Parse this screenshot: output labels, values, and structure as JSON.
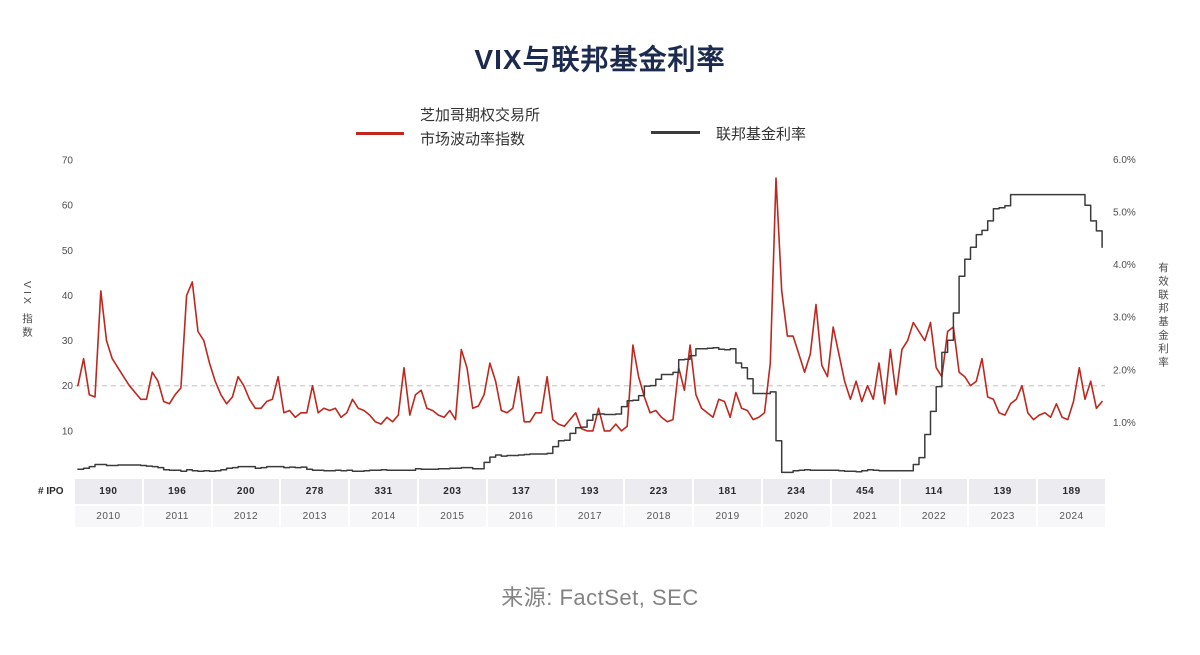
{
  "title": {
    "text": "VIX与联邦基金利率"
  },
  "legend": {
    "vix": {
      "line1": "芝加哥期权交易所",
      "line2": "市场波动率指数",
      "color": "#c0271e"
    },
    "ffr": {
      "label": "联邦基金利率",
      "color": "#3b3b3b"
    }
  },
  "axes": {
    "left": {
      "title": "VIX 指数",
      "tick_labels": [
        "70",
        "60",
        "50",
        "40",
        "30",
        "20",
        "10"
      ],
      "tick_values": [
        70,
        60,
        50,
        40,
        30,
        20,
        10
      ]
    },
    "right": {
      "title": "有效联邦基金利率",
      "tick_labels": [
        "6.0%",
        "5.0%",
        "4.0%",
        "3.0%",
        "2.0%",
        "1.0%"
      ],
      "tick_values": [
        6,
        5,
        4,
        3,
        2,
        1
      ]
    }
  },
  "ipo": {
    "label": "# IPO",
    "years": [
      "2010",
      "2011",
      "2012",
      "2013",
      "2014",
      "2015",
      "2016",
      "2017",
      "2018",
      "2019",
      "2020",
      "2021",
      "2022",
      "2023",
      "2024"
    ],
    "counts": [
      "190",
      "196",
      "200",
      "278",
      "331",
      "203",
      "137",
      "193",
      "223",
      "181",
      "234",
      "454",
      "114",
      "139",
      "189"
    ]
  },
  "source": {
    "text": "来源: FactSet, SEC"
  },
  "chart_data": {
    "type": "line",
    "title": "VIX与联邦基金利率",
    "x_years": [
      2010,
      2011,
      2012,
      2013,
      2014,
      2015,
      2016,
      2017,
      2018,
      2019,
      2020,
      2021,
      2022,
      2023,
      2024
    ],
    "x_resolution": "monthly",
    "left_ylabel": "VIX 指数",
    "right_ylabel": "有效联邦基金利率",
    "left_ylim": [
      0,
      70
    ],
    "right_ylim": [
      0,
      6
    ],
    "grid": false,
    "reference_line": {
      "axis": "left",
      "value": 20,
      "style": "dashed",
      "color": "#cccccc"
    },
    "legend_position": "top",
    "series": [
      {
        "name": "芝加哥期权交易所市场波动率指数 (VIX)",
        "axis": "left",
        "color": "#c0271e",
        "line_style": "solid",
        "values": [
          20,
          26,
          18,
          17.5,
          41,
          30,
          26,
          24,
          22,
          20,
          18.5,
          17,
          17,
          23,
          21,
          16.5,
          16,
          18,
          19.5,
          40,
          43,
          32,
          30,
          25,
          21,
          18,
          16,
          17.5,
          22,
          20,
          17,
          15,
          15,
          16.5,
          17,
          22,
          14,
          14.5,
          13,
          14,
          14,
          20,
          14,
          15,
          14.5,
          15,
          13,
          14,
          17,
          15,
          14.5,
          13.5,
          12,
          11.5,
          13,
          12,
          13.5,
          24,
          13.5,
          18,
          19,
          15,
          14.5,
          13.5,
          13,
          14.5,
          12.5,
          28,
          24,
          15,
          15.5,
          18,
          25,
          21,
          14.5,
          14,
          15,
          22,
          12,
          12,
          14,
          14,
          22,
          12.5,
          11.5,
          11,
          12.5,
          14,
          10.5,
          10,
          10,
          15,
          10,
          10,
          11.5,
          10,
          11,
          29,
          22,
          17.5,
          14,
          14.5,
          13,
          12,
          12.5,
          24,
          19,
          29,
          18,
          15,
          14,
          13,
          17,
          16.5,
          13,
          18.5,
          15,
          14.5,
          12.5,
          13,
          14,
          25,
          66,
          41,
          31,
          31,
          27,
          23,
          27,
          38,
          24.5,
          22,
          33,
          27,
          21,
          17,
          21,
          16.5,
          20,
          17,
          25,
          16,
          28,
          18,
          28,
          30,
          34,
          32,
          30,
          34,
          24,
          22,
          32,
          33,
          23,
          22,
          20,
          21,
          26,
          17.5,
          17,
          14,
          13.5,
          16,
          17,
          20,
          14,
          12.5,
          13.5,
          14,
          13,
          16,
          13,
          12.5,
          16.5,
          24,
          17,
          21,
          15,
          16.5
        ]
      },
      {
        "name": "联邦基金利率",
        "axis": "right",
        "color": "#3b3b3b",
        "line_style": "step",
        "values": [
          0.11,
          0.13,
          0.16,
          0.2,
          0.2,
          0.18,
          0.18,
          0.19,
          0.19,
          0.19,
          0.19,
          0.18,
          0.17,
          0.16,
          0.14,
          0.1,
          0.09,
          0.09,
          0.07,
          0.1,
          0.08,
          0.07,
          0.08,
          0.07,
          0.08,
          0.1,
          0.13,
          0.14,
          0.16,
          0.16,
          0.16,
          0.13,
          0.14,
          0.16,
          0.16,
          0.16,
          0.14,
          0.15,
          0.14,
          0.15,
          0.11,
          0.09,
          0.09,
          0.08,
          0.08,
          0.09,
          0.08,
          0.09,
          0.07,
          0.07,
          0.08,
          0.09,
          0.09,
          0.1,
          0.09,
          0.09,
          0.09,
          0.09,
          0.09,
          0.12,
          0.11,
          0.11,
          0.11,
          0.12,
          0.12,
          0.13,
          0.13,
          0.14,
          0.14,
          0.12,
          0.12,
          0.24,
          0.34,
          0.38,
          0.36,
          0.37,
          0.37,
          0.38,
          0.39,
          0.4,
          0.4,
          0.4,
          0.41,
          0.54,
          0.65,
          0.66,
          0.79,
          0.9,
          0.91,
          1.04,
          1.15,
          1.16,
          1.15,
          1.15,
          1.16,
          1.3,
          1.41,
          1.42,
          1.51,
          1.69,
          1.7,
          1.82,
          1.91,
          1.91,
          1.95,
          2.19,
          2.2,
          2.27,
          2.4,
          2.4,
          2.41,
          2.42,
          2.39,
          2.38,
          2.4,
          2.13,
          2.04,
          1.83,
          1.55,
          1.55,
          1.55,
          1.58,
          0.65,
          0.05,
          0.05,
          0.08,
          0.09,
          0.1,
          0.09,
          0.09,
          0.09,
          0.09,
          0.09,
          0.08,
          0.07,
          0.07,
          0.06,
          0.08,
          0.1,
          0.09,
          0.08,
          0.08,
          0.08,
          0.08,
          0.08,
          0.08,
          0.2,
          0.33,
          0.77,
          1.21,
          1.68,
          2.33,
          2.56,
          3.08,
          3.78,
          4.1,
          4.33,
          4.57,
          4.65,
          4.83,
          5.06,
          5.08,
          5.12,
          5.33,
          5.33,
          5.33,
          5.33,
          5.33,
          5.33,
          5.33,
          5.33,
          5.33,
          5.33,
          5.33,
          5.33,
          5.33,
          5.13,
          4.83,
          4.64,
          4.33
        ]
      }
    ],
    "ipo_counts_by_year": [
      190,
      196,
      200,
      278,
      331,
      203,
      137,
      193,
      223,
      181,
      234,
      454,
      114,
      139,
      189
    ]
  }
}
